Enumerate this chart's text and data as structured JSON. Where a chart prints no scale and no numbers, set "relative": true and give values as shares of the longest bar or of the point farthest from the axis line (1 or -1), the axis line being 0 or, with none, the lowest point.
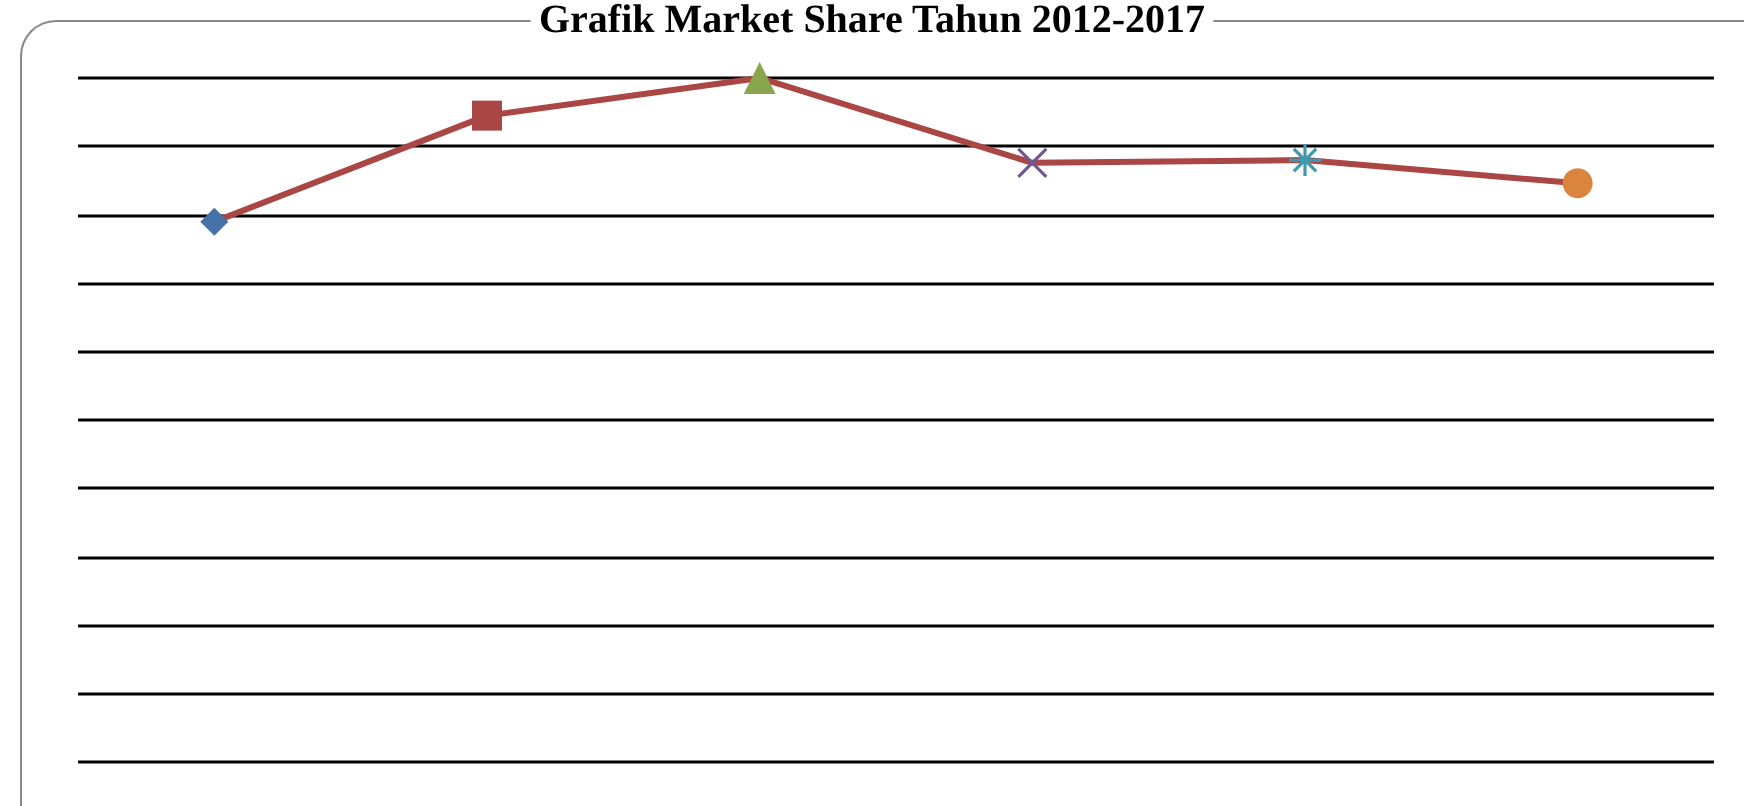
{
  "chart_data": {
    "type": "line",
    "title": "Grafik Market Share Tahun 2012-2017",
    "relative": true,
    "grid": "y",
    "categories": [
      null,
      null,
      null,
      null,
      null,
      null
    ],
    "series": [
      {
        "color": "#aa4643",
        "marker": "diamond",
        "values": [
          0.79,
          0.945,
          1,
          0.876,
          0.88,
          0.846
        ],
        "colors": [
          "#4572a7",
          "#aa4643",
          "#89a54e",
          "#71588f",
          "#4198af",
          "#db843d"
        ]
      }
    ]
  }
}
